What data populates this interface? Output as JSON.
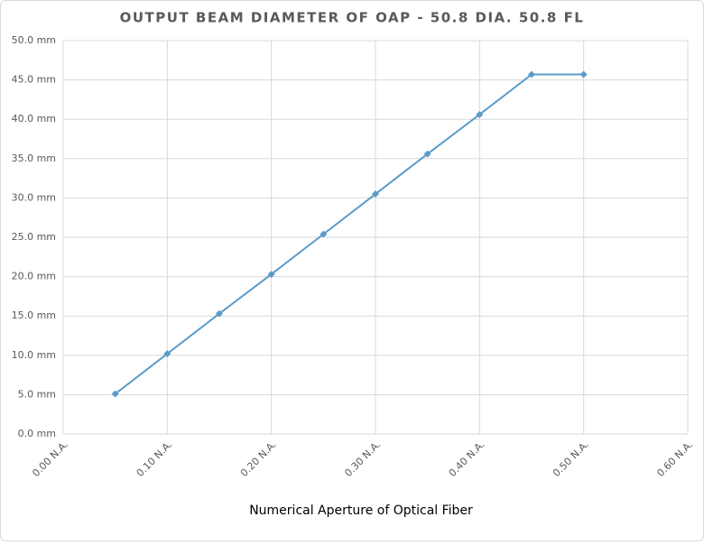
{
  "chart_data": {
    "type": "line",
    "title": "OUTPUT BEAM DIAMETER OF OAP - 50.8 DIA. 50.8 FL",
    "x_label": "Numerical Aperture of Optical Fiber",
    "x": [
      0.05,
      0.1,
      0.15,
      0.2,
      0.25,
      0.3,
      0.35,
      0.4,
      0.45,
      0.5
    ],
    "values": [
      5.1,
      10.2,
      15.3,
      20.3,
      25.4,
      30.5,
      35.6,
      40.6,
      45.7,
      45.7
    ],
    "color": "#5b9bc9",
    "xlim": [
      0,
      0.6
    ],
    "xticks": [
      {
        "value": 0,
        "label": "0.00 N.A."
      },
      {
        "value": 0.1,
        "label": "0.10 N.A."
      },
      {
        "value": 0.2,
        "label": "0.20 N.A."
      },
      {
        "value": 0.3,
        "label": "0.30 N.A."
      },
      {
        "value": 0.4,
        "label": "0.40 N.A."
      },
      {
        "value": 0.5,
        "label": "0.50 N.A."
      },
      {
        "value": 0.6,
        "label": "0.60 N.A."
      }
    ],
    "ylim": [
      0,
      50
    ],
    "yticks": [
      {
        "value": 0,
        "label": "0.0 mm"
      },
      {
        "value": 5,
        "label": "5.0 mm"
      },
      {
        "value": 10,
        "label": "10.0 mm"
      },
      {
        "value": 15,
        "label": "15.0 mm"
      },
      {
        "value": 20,
        "label": "20.0 mm"
      },
      {
        "value": 25,
        "label": "25.0 mm"
      },
      {
        "value": 30,
        "label": "30.0 mm"
      },
      {
        "value": 35,
        "label": "35.0 mm"
      },
      {
        "value": 40,
        "label": "40.0 mm"
      },
      {
        "value": 45,
        "label": "45.0 mm"
      },
      {
        "value": 50,
        "label": "50.0 mm"
      }
    ],
    "grid": true
  }
}
